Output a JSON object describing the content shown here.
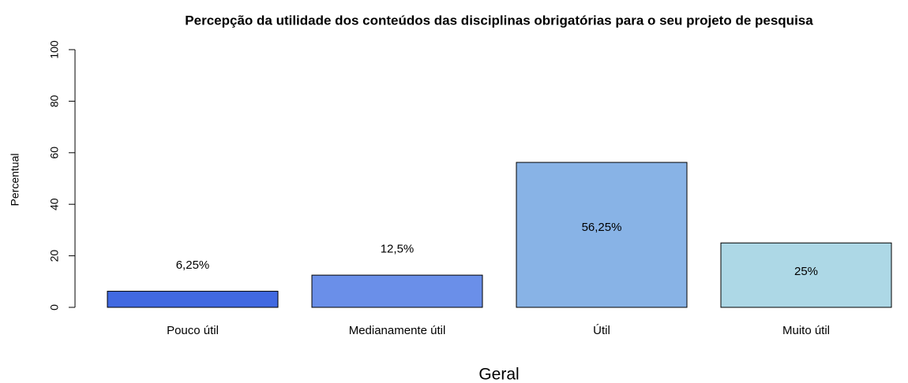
{
  "chart_data": {
    "type": "bar",
    "title": "Percepção da utilidade dos conteúdos das disciplinas obrigatórias para o seu projeto de pesquisa",
    "xlabel": "Geral",
    "ylabel": "Percentual",
    "categories": [
      "Pouco útil",
      "Medianamente útil",
      "Útil",
      "Muito útil"
    ],
    "values": [
      6.25,
      12.5,
      56.25,
      25
    ],
    "value_labels": [
      "6,25%",
      "12,5%",
      "56,25%",
      "25%"
    ],
    "colors": [
      "#4169e1",
      "#6a8fe9",
      "#88b3e6",
      "#add8e6"
    ],
    "ylim": [
      0,
      100
    ],
    "yticks": [
      0,
      20,
      40,
      60,
      80,
      100
    ]
  }
}
